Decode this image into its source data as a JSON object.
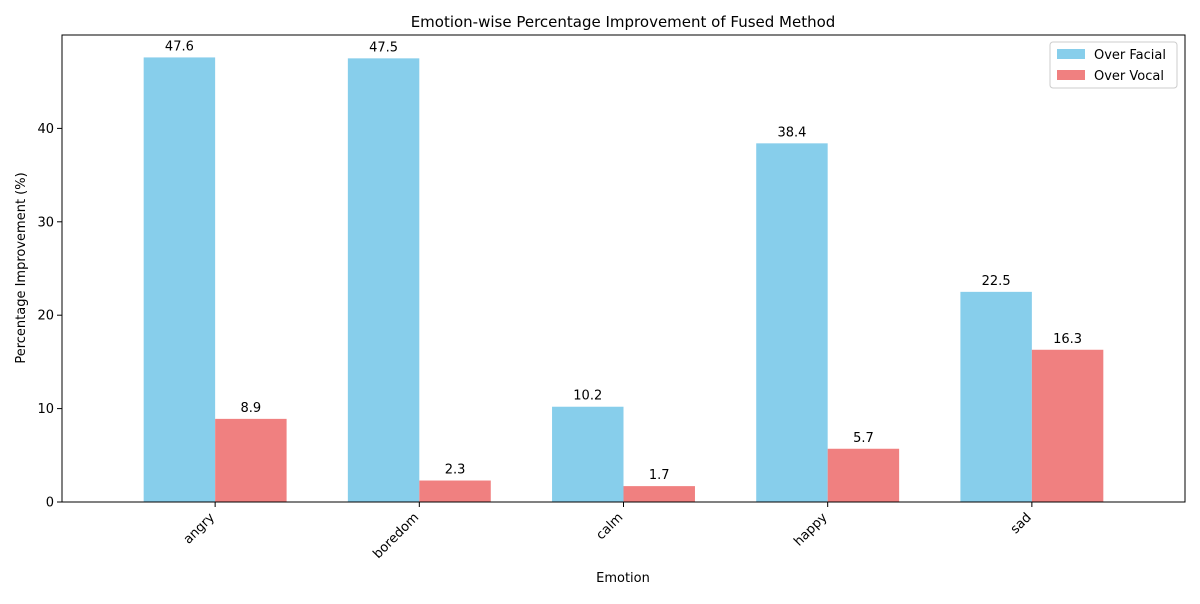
{
  "chart_data": {
    "type": "bar",
    "title": "Emotion-wise Percentage Improvement of Fused Method",
    "xlabel": "Emotion",
    "ylabel": "Percentage Improvement (%)",
    "categories": [
      "angry",
      "boredom",
      "calm",
      "happy",
      "sad"
    ],
    "series": [
      {
        "name": "Over Facial",
        "color": "#87CEEB",
        "values": [
          47.6,
          47.5,
          10.2,
          38.4,
          22.5
        ]
      },
      {
        "name": "Over Vocal",
        "color": "#F08080",
        "values": [
          8.9,
          2.3,
          1.7,
          5.7,
          16.3
        ]
      }
    ],
    "ylim": [
      0,
      50
    ],
    "yticks": [
      0,
      10,
      20,
      30,
      40
    ],
    "grid": false,
    "legend_position": "top-right",
    "tick_rotation": 45
  }
}
